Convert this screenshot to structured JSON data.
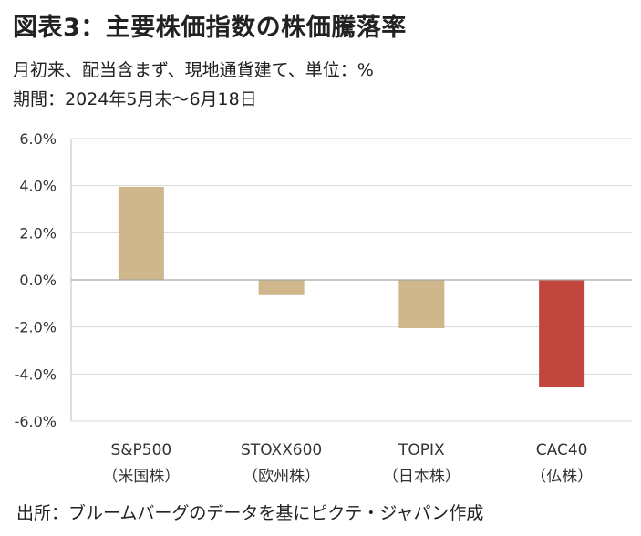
{
  "header": {
    "title": "図表3：主要株価指数の株価騰落率",
    "subtitle_line1": "月初来、配当含まず、現地通貨建て、単位：%",
    "subtitle_line2": "期間：2024年5月末～6月18日"
  },
  "footer": {
    "source": "出所：ブルームバーグのデータを基にピクテ・ジャパン作成"
  },
  "chart_data": {
    "type": "bar",
    "categories": [
      "S&P500",
      "STOXX600",
      "TOPIX",
      "CAC40"
    ],
    "category_sublabels": [
      "（米国株）",
      "（欧州株）",
      "（日本株）",
      "（仏株）"
    ],
    "values": [
      3.95,
      -0.65,
      -2.05,
      -4.55
    ],
    "bar_colors": [
      "#cfb68b",
      "#cfb68b",
      "#cfb68b",
      "#c0463e"
    ],
    "ylim": [
      -6,
      6
    ],
    "yticks": [
      6,
      4,
      2,
      0,
      -2,
      -4,
      -6
    ],
    "ytick_labels": [
      "6.0%",
      "4.0%",
      "2.0%",
      "0.0%",
      "-2.0%",
      "-4.0%",
      "-6.0%"
    ],
    "grid": true,
    "title": "",
    "xlabel": "",
    "ylabel": ""
  }
}
